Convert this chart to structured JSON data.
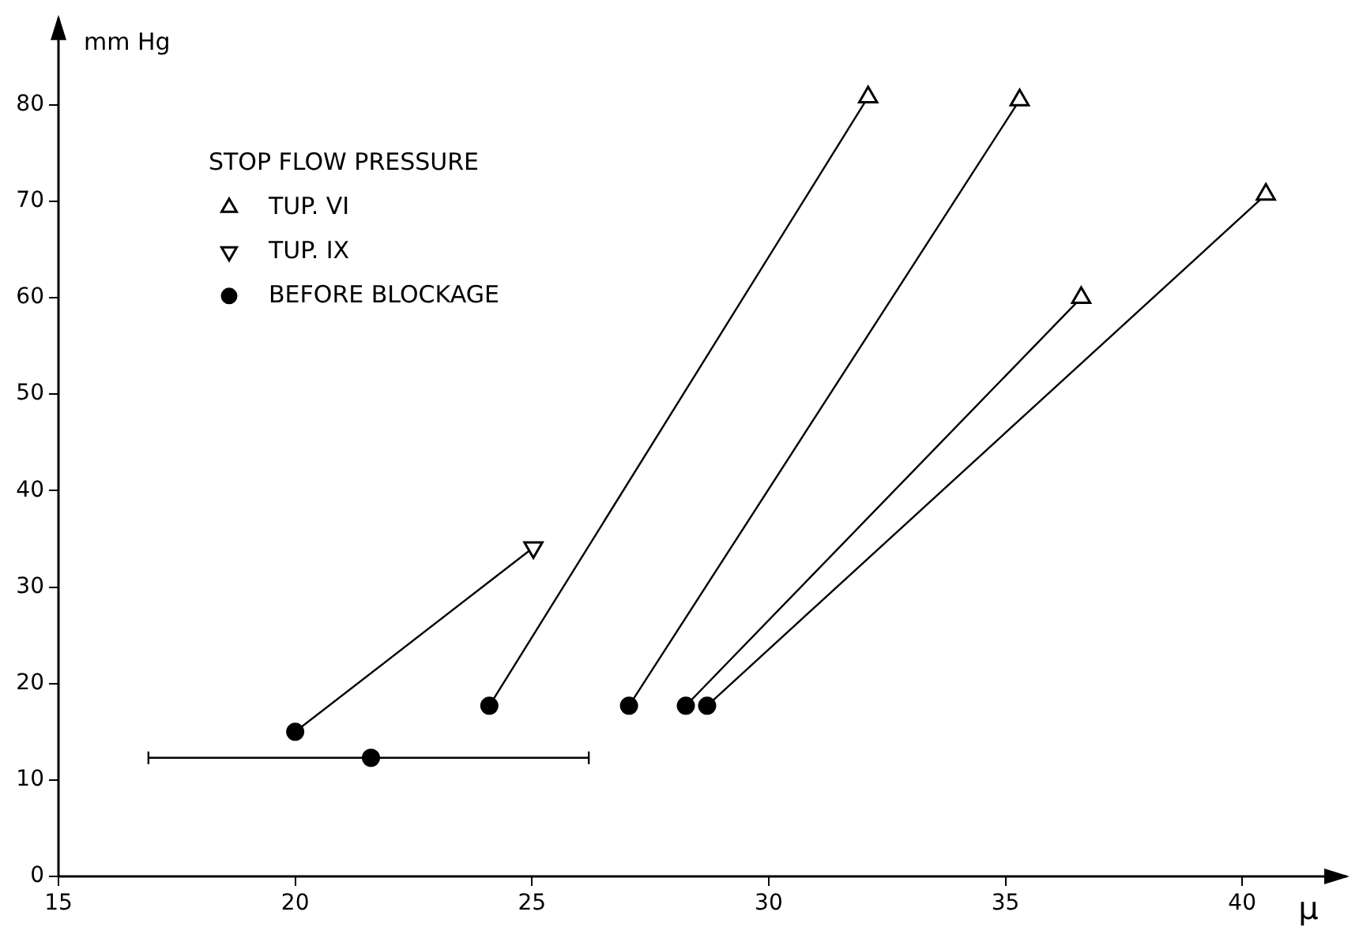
{
  "chart_data": {
    "type": "scatter",
    "xlabel": "μ",
    "ylabel": "mm Hg",
    "legend_title": "STOP FLOW PRESSURE",
    "legend": "top left",
    "grid": false,
    "xlim": [
      15,
      42.2
    ],
    "ylim": [
      0,
      89
    ],
    "xticks": [
      15,
      20,
      25,
      30,
      35,
      40
    ],
    "yticks": [
      0,
      10,
      20,
      30,
      40,
      50,
      60,
      70,
      80
    ],
    "series": [
      {
        "name": "TUP. VI",
        "marker": "triangle",
        "color": "#000000",
        "x": [
          32.1,
          35.3,
          36.6,
          40.5
        ],
        "values": [
          80.8,
          80.5,
          60,
          70.7
        ]
      },
      {
        "name": "TUP. IX",
        "marker": "triangle-down",
        "color": "#000000",
        "x": [
          25.03
        ],
        "values": [
          34.1
        ]
      },
      {
        "name": "BEFORE BLOCKAGE",
        "marker": "circle",
        "color": "#000000",
        "x": [
          20,
          21.6,
          24.1,
          27.05,
          28.25,
          28.7
        ],
        "values": [
          15,
          12.3,
          17.7,
          17.7,
          17.7,
          17.7
        ],
        "xerrors": [
          null,
          [
            16.9,
            26.2
          ],
          null,
          null,
          null,
          null
        ]
      },
      {
        "type": "line",
        "marker": "none",
        "color": "#000000",
        "x": [
          20,
          25.03
        ],
        "values": [
          15,
          34.1
        ]
      },
      {
        "type": "line",
        "marker": "none",
        "color": "#000000",
        "x": [
          24.1,
          32.1
        ],
        "values": [
          17.7,
          80.8
        ]
      },
      {
        "type": "line",
        "marker": "none",
        "color": "#000000",
        "x": [
          27.05,
          35.3
        ],
        "values": [
          17.7,
          80.5
        ]
      },
      {
        "type": "line",
        "marker": "none",
        "color": "#000000",
        "x": [
          28.25,
          36.6
        ],
        "values": [
          17.7,
          60
        ]
      },
      {
        "type": "line",
        "marker": "none",
        "color": "#000000",
        "x": [
          28.7,
          40.5
        ],
        "values": [
          17.7,
          70.7
        ]
      }
    ]
  }
}
